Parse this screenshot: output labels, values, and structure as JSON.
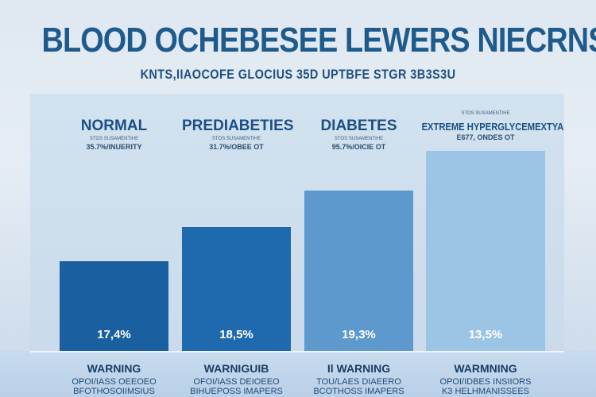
{
  "chart_data": {
    "type": "bar",
    "title": "BLOOD OCHEBESEE LEWERS NIECRNS",
    "subtitle": "KNTS,IIAOCOFE GLOCIUS 35D UPTBFE STGR 3B3S3U",
    "categories": [
      "NORMAL",
      "PREDIABETIES",
      "DIABETES",
      "EXTREME HYPERGLYCEMEXTYA"
    ],
    "category_tiny_labels": [
      "STOS SUSAMENTIHE",
      "STOS SUSAMENTIHE",
      "STOS SUSAMENTIHE",
      "STOS SUSAMENTIHE"
    ],
    "category_sublabels": [
      "35.7%/INUERITY",
      "31.7%/OBEE OT",
      "95.7%/OICIE OT",
      "E677, ONDES OT"
    ],
    "values": [
      17.4,
      18.5,
      19.3,
      13.5
    ],
    "data_labels": [
      "17,4%",
      "18,5%",
      "19,3%",
      "13,5%"
    ],
    "bar_colors": [
      "#1a5fa0",
      "#1f6aae",
      "#5d99cc",
      "#9cc4e4"
    ],
    "warnings": [
      "WARNING",
      "WARNIGUIB",
      "Il WARNING",
      "WARMNING"
    ],
    "warning_sublines": [
      [
        "OPOI/IASS OEEOEO",
        "BFOTHOSOIIMSIUS"
      ],
      [
        "OFOI/IASS DEIOEEO",
        "BIHUEPOSS IMAPERS"
      ],
      [
        "TOU/LAES DIAEERO",
        "BCOTHOSS IMAPERS"
      ],
      [
        "OPOI/IDBES INSIIORS",
        "K3 HELHMANISSEES"
      ]
    ],
    "ylim": [
      0,
      35
    ],
    "grid": false
  }
}
